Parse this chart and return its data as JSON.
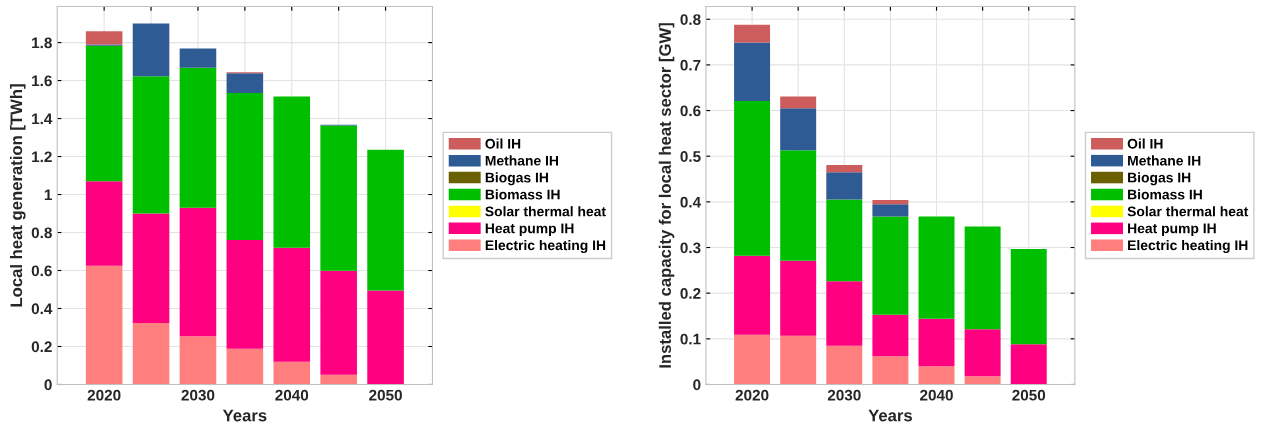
{
  "chart_data": [
    {
      "type": "bar",
      "stacked": true,
      "xlabel": "Years",
      "ylabel": "Local heat generation [TWh]",
      "x": [
        2020,
        2025,
        2030,
        2035,
        2040,
        2045,
        2050
      ],
      "xlim": [
        2015,
        2055
      ],
      "xticks": [
        2020,
        {
          "value": 2025,
          "label": null
        },
        2030,
        {
          "value": 2035,
          "label": null
        },
        2040,
        {
          "value": 2045,
          "label": null
        },
        2050
      ],
      "ylim": [
        0,
        1.99
      ],
      "yticks": [
        0,
        0.2,
        0.4,
        0.6,
        0.8,
        1,
        1.2,
        1.4,
        1.6,
        1.8
      ],
      "grid": true,
      "legend": "right",
      "series": [
        {
          "name": "Electric heating IH",
          "color": "#ff7f7f",
          "values": [
            0.625,
            0.324,
            0.254,
            0.188,
            0.12,
            0.051,
            0
          ]
        },
        {
          "name": "Heat pump IH",
          "color": "#ff0080",
          "values": [
            0.445,
            0.576,
            0.677,
            0.573,
            0.6,
            0.548,
            0.495
          ]
        },
        {
          "name": "Solar thermal heat",
          "color": "#ffff00",
          "values": [
            0,
            0,
            0,
            0,
            0,
            0,
            0
          ]
        },
        {
          "name": "Biomass IH",
          "color": "#00bf00",
          "values": [
            0.713,
            0.723,
            0.736,
            0.774,
            0.796,
            0.764,
            0.741
          ]
        },
        {
          "name": "Biogas IH",
          "color": "#6b6000",
          "values": [
            0,
            0,
            0,
            0,
            0,
            0,
            0
          ]
        },
        {
          "name": "Methane IH",
          "color": "#2f5b94",
          "values": [
            0.007,
            0.278,
            0.102,
            0.104,
            0,
            0.005,
            0
          ]
        },
        {
          "name": "Oil IH",
          "color": "#cd5c5c",
          "values": [
            0.07,
            0,
            0,
            0.005,
            0,
            0,
            0
          ]
        }
      ]
    },
    {
      "type": "bar",
      "stacked": true,
      "xlabel": "Years",
      "ylabel": "Installed capacity for local heat sector [GW]",
      "x": [
        2020,
        2025,
        2030,
        2035,
        2040,
        2045,
        2050
      ],
      "xlim": [
        2015,
        2055
      ],
      "xticks": [
        2020,
        {
          "value": 2025,
          "label": null
        },
        2030,
        {
          "value": 2035,
          "label": null
        },
        2040,
        {
          "value": 2045,
          "label": null
        },
        2050
      ],
      "ylim": [
        0,
        0.828
      ],
      "yticks": [
        0,
        0.1,
        0.2,
        0.3,
        0.4,
        0.5,
        0.6,
        0.7,
        0.8
      ],
      "grid": true,
      "legend": "right",
      "series": [
        {
          "name": "Electric heating IH",
          "color": "#ff7f7f",
          "values": [
            0.109,
            0.107,
            0.085,
            0.062,
            0.04,
            0.018,
            0
          ]
        },
        {
          "name": "Heat pump IH",
          "color": "#ff0080",
          "values": [
            0.173,
            0.164,
            0.141,
            0.091,
            0.104,
            0.103,
            0.088
          ]
        },
        {
          "name": "Solar thermal heat",
          "color": "#ffff00",
          "values": [
            0,
            0,
            0,
            0,
            0,
            0,
            0
          ]
        },
        {
          "name": "Biomass IH",
          "color": "#00bf00",
          "values": [
            0.339,
            0.242,
            0.179,
            0.215,
            0.224,
            0.225,
            0.209
          ]
        },
        {
          "name": "Biogas IH",
          "color": "#6b6000",
          "values": [
            0,
            0,
            0,
            0,
            0,
            0,
            0
          ]
        },
        {
          "name": "Methane IH",
          "color": "#2f5b94",
          "values": [
            0.128,
            0.092,
            0.06,
            0.027,
            0,
            0,
            0
          ]
        },
        {
          "name": "Oil IH",
          "color": "#cd5c5c",
          "values": [
            0.039,
            0.026,
            0.016,
            0.009,
            0,
            0,
            0
          ]
        }
      ]
    }
  ]
}
